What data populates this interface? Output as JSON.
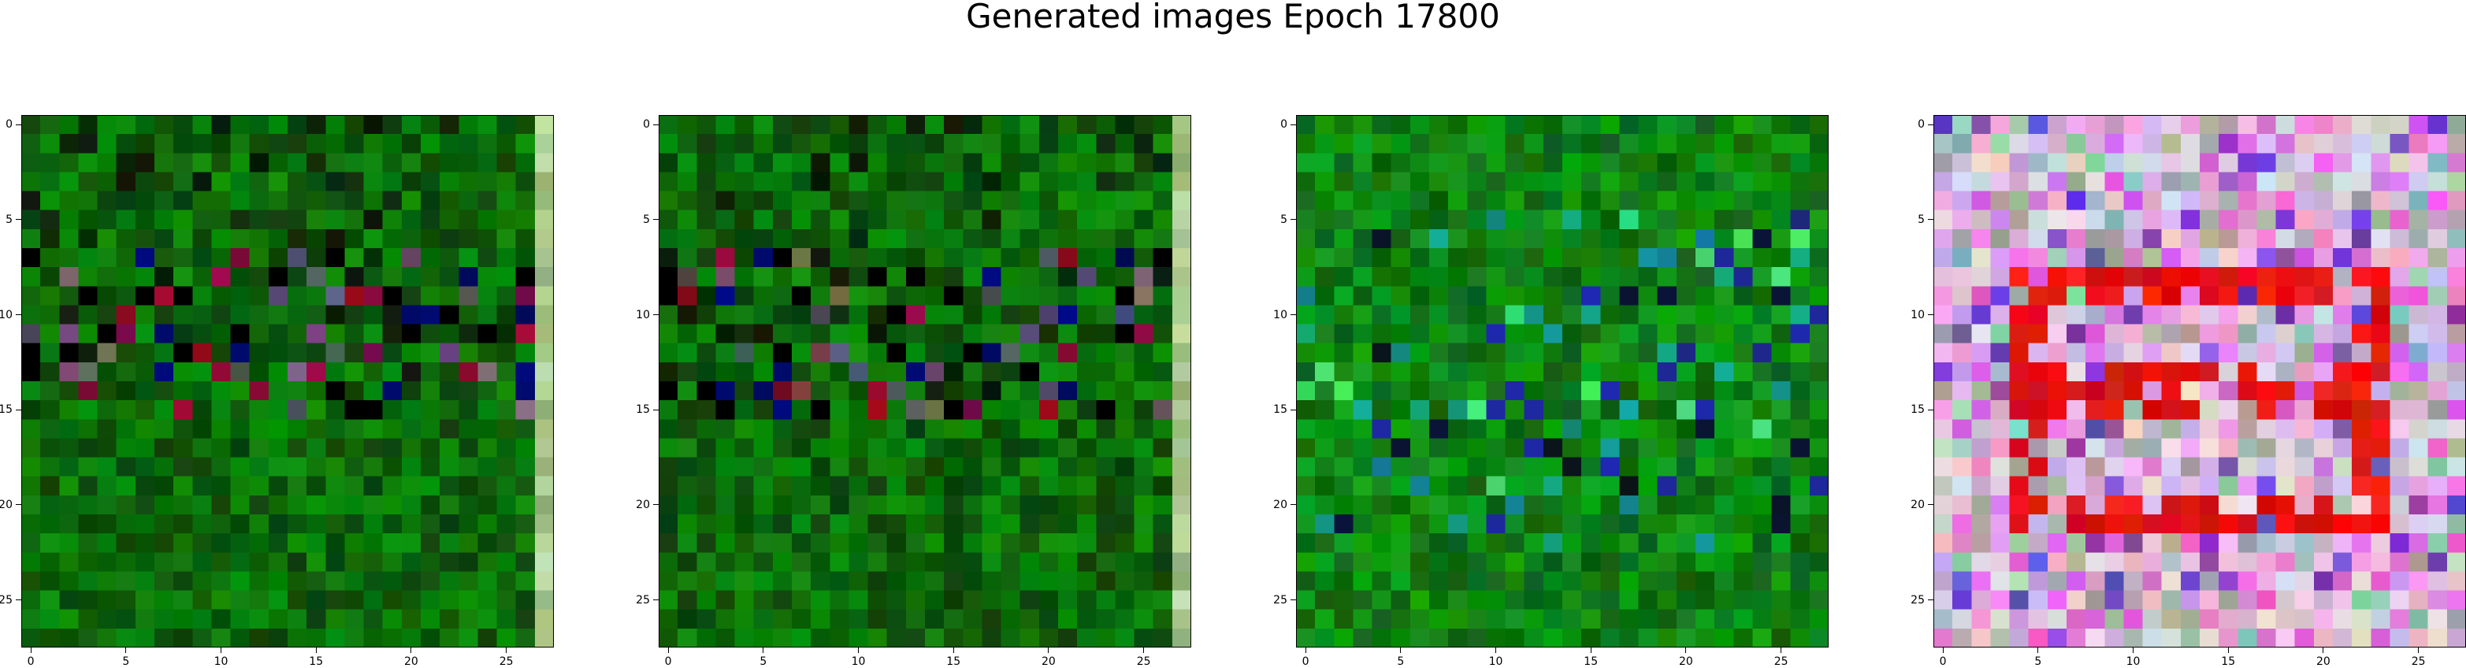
{
  "figure": {
    "title": "Generated images Epoch 17800"
  },
  "axes": {
    "x_ticks": [
      0,
      5,
      10,
      15,
      20,
      25
    ],
    "y_ticks": [
      0,
      5,
      10,
      15,
      20,
      25
    ],
    "grid_size": 28
  },
  "panels": [
    {
      "id": 1,
      "palette": "dark-green",
      "right_column_light": true
    },
    {
      "id": 2,
      "palette": "dark-green",
      "right_column_light": true
    },
    {
      "id": 3,
      "palette": "green",
      "right_column_light": false
    },
    {
      "id": 4,
      "palette": "pink-red",
      "right_column_light": false
    }
  ],
  "colors": {
    "dark_green": "#0a6a0a",
    "green": "#138a18",
    "pink": "#c8a0c8",
    "red": "#e01010"
  }
}
